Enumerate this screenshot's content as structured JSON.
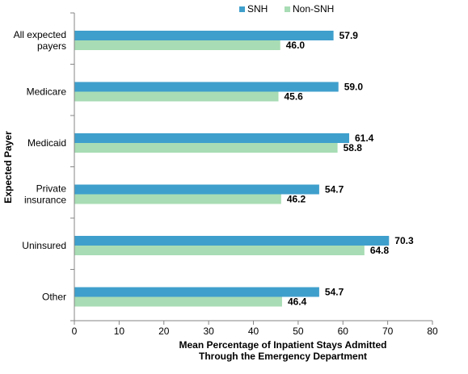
{
  "chart_data": {
    "type": "bar",
    "orientation": "horizontal",
    "categories": [
      [
        "All expected",
        "payers"
      ],
      [
        "Medicare"
      ],
      [
        "Medicaid"
      ],
      [
        "Private",
        "insurance"
      ],
      [
        "Uninsured"
      ],
      [
        "Other"
      ]
    ],
    "series": [
      {
        "name": "SNH",
        "color": "#3f9fcc",
        "values": [
          57.9,
          59.0,
          61.4,
          54.7,
          70.3,
          54.7
        ],
        "labels": [
          "57.9",
          "59.0",
          "61.4",
          "54.7",
          "70.3",
          "54.7"
        ]
      },
      {
        "name": "Non-SNH",
        "color": "#a8dcb4",
        "values": [
          46.0,
          45.6,
          58.8,
          46.2,
          64.8,
          46.4
        ],
        "labels": [
          "46.0",
          "45.6",
          "58.8",
          "46.2",
          "64.8",
          "46.4"
        ]
      }
    ],
    "xlim": [
      0,
      80
    ],
    "xticks": [
      0,
      10,
      20,
      30,
      40,
      50,
      60,
      70,
      80
    ],
    "xlabel": [
      "Mean Percentage of Inpatient Stays Admitted",
      "Through the Emergency Department"
    ],
    "ylabel": "Expected Payer",
    "grid": false,
    "legend": "top-center"
  }
}
